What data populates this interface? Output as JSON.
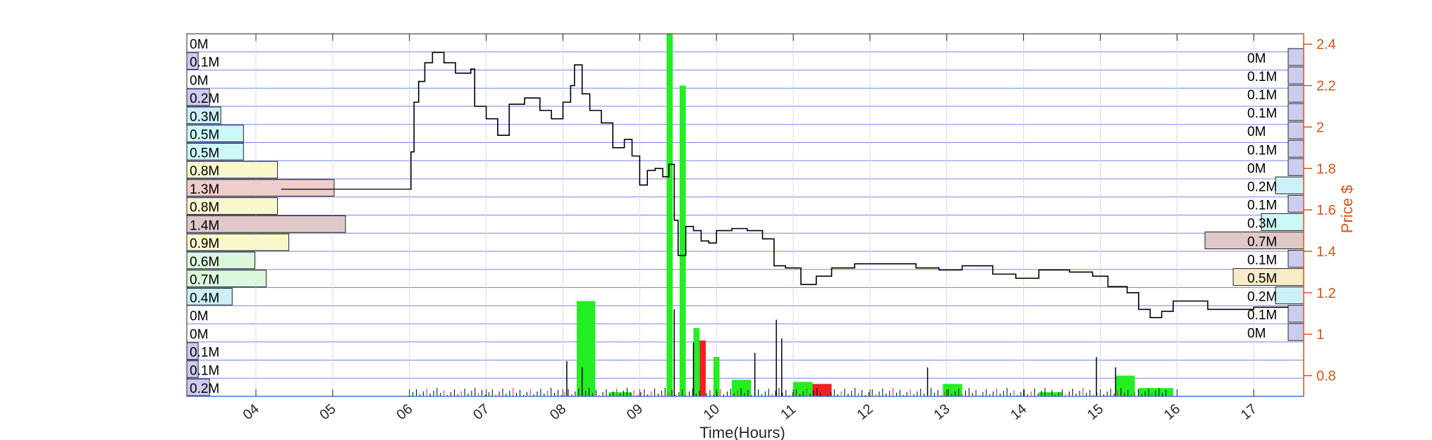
{
  "chart_data": {
    "type": "line",
    "title": "",
    "xlabel": "Time(Hours)",
    "ylabel_right": "Price $",
    "xlim": [
      3.1,
      17.65
    ],
    "x_ticks": [
      4,
      5,
      6,
      7,
      8,
      9,
      10,
      11,
      12,
      13,
      14,
      15,
      16,
      17
    ],
    "x_tick_labels": [
      "04",
      "05",
      "06",
      "07",
      "08",
      "09",
      "10",
      "11",
      "12",
      "13",
      "14",
      "15",
      "16",
      "17"
    ],
    "ylim_right": [
      0.7,
      2.45
    ],
    "y_ticks_right": [
      0.8,
      1.0,
      1.2,
      1.4,
      1.6,
      1.8,
      2.0,
      2.2,
      2.4
    ],
    "y_tick_labels_right": [
      "0.8",
      "1",
      "1.2",
      "1.4",
      "1.6",
      "1.8",
      "2",
      "2.2",
      "2.4"
    ],
    "grid": true,
    "colors": {
      "price_axis": "#D95319",
      "grid_rows": "#5b6ee8",
      "price_line": "#000000",
      "buy_volume": "#22ee22",
      "sell_volume": "#ee2222"
    },
    "price_series": {
      "name": "",
      "points": [
        [
          6.0,
          1.7
        ],
        [
          6.02,
          1.88
        ],
        [
          6.06,
          2.12
        ],
        [
          6.12,
          2.22
        ],
        [
          6.2,
          2.31
        ],
        [
          6.3,
          2.36
        ],
        [
          6.45,
          2.31
        ],
        [
          6.6,
          2.26
        ],
        [
          6.8,
          2.28
        ],
        [
          6.85,
          2.1
        ],
        [
          7.0,
          2.04
        ],
        [
          7.15,
          1.96
        ],
        [
          7.3,
          2.11
        ],
        [
          7.5,
          2.14
        ],
        [
          7.7,
          2.08
        ],
        [
          7.85,
          2.04
        ],
        [
          8.0,
          2.12
        ],
        [
          8.1,
          2.2
        ],
        [
          8.15,
          2.3
        ],
        [
          8.25,
          2.16
        ],
        [
          8.35,
          2.08
        ],
        [
          8.5,
          2.02
        ],
        [
          8.65,
          1.9
        ],
        [
          8.8,
          1.94
        ],
        [
          8.9,
          1.86
        ],
        [
          9.0,
          1.72
        ],
        [
          9.1,
          1.79
        ],
        [
          9.2,
          1.8
        ],
        [
          9.3,
          1.76
        ],
        [
          9.38,
          1.82
        ],
        [
          9.45,
          1.55
        ],
        [
          9.5,
          1.38
        ],
        [
          9.6,
          1.52
        ],
        [
          9.7,
          1.5
        ],
        [
          9.8,
          1.45
        ],
        [
          9.9,
          1.44
        ],
        [
          10.0,
          1.5
        ],
        [
          10.2,
          1.51
        ],
        [
          10.4,
          1.5
        ],
        [
          10.6,
          1.46
        ],
        [
          10.75,
          1.33
        ],
        [
          10.9,
          1.32
        ],
        [
          11.1,
          1.24
        ],
        [
          11.3,
          1.28
        ],
        [
          11.5,
          1.32
        ],
        [
          11.8,
          1.34
        ],
        [
          12.2,
          1.34
        ],
        [
          12.6,
          1.32
        ],
        [
          12.9,
          1.31
        ],
        [
          13.2,
          1.33
        ],
        [
          13.6,
          1.29
        ],
        [
          13.9,
          1.27
        ],
        [
          14.2,
          1.31
        ],
        [
          14.6,
          1.3
        ],
        [
          14.9,
          1.28
        ],
        [
          15.1,
          1.23
        ],
        [
          15.35,
          1.2
        ],
        [
          15.5,
          1.12
        ],
        [
          15.65,
          1.08
        ],
        [
          15.8,
          1.11
        ],
        [
          15.95,
          1.16
        ],
        [
          16.2,
          1.16
        ],
        [
          16.4,
          1.12
        ],
        [
          17.0,
          1.13
        ],
        [
          17.45,
          1.13
        ]
      ]
    },
    "volume_bars": [
      {
        "x0": 8.18,
        "x1": 8.42,
        "price_top": 1.16,
        "side": "buy"
      },
      {
        "x0": 9.35,
        "x1": 9.43,
        "price_top": 2.45,
        "side": "buy"
      },
      {
        "x0": 9.52,
        "x1": 9.6,
        "price_top": 2.2,
        "side": "buy"
      },
      {
        "x0": 9.7,
        "x1": 9.78,
        "price_top": 1.03,
        "side": "buy"
      },
      {
        "x0": 9.78,
        "x1": 9.86,
        "price_top": 0.97,
        "side": "sell"
      },
      {
        "x0": 9.96,
        "x1": 10.04,
        "price_top": 0.89,
        "side": "buy"
      },
      {
        "x0": 10.2,
        "x1": 10.45,
        "price_top": 0.78,
        "side": "buy"
      },
      {
        "x0": 11.0,
        "x1": 11.25,
        "price_top": 0.77,
        "side": "buy"
      },
      {
        "x0": 11.25,
        "x1": 11.5,
        "price_top": 0.76,
        "side": "sell"
      },
      {
        "x0": 12.95,
        "x1": 13.2,
        "price_top": 0.76,
        "side": "buy"
      },
      {
        "x0": 15.2,
        "x1": 15.45,
        "price_top": 0.8,
        "side": "buy"
      },
      {
        "x0": 15.5,
        "x1": 15.95,
        "price_top": 0.74,
        "side": "buy"
      },
      {
        "x0": 8.6,
        "x1": 8.9,
        "price_top": 0.72,
        "side": "buy"
      },
      {
        "x0": 14.2,
        "x1": 14.5,
        "price_top": 0.72,
        "side": "buy"
      }
    ],
    "volume_profile_left": {
      "labels": [
        "0M",
        "0.1M",
        "0M",
        "0.2M",
        "0.3M",
        "0.5M",
        "0.5M",
        "0.8M",
        "1.3M",
        "0.8M",
        "1.4M",
        "0.9M",
        "0.6M",
        "0.7M",
        "0.4M",
        "0M",
        "0M",
        "0.1M",
        "0.1M",
        "0.2M"
      ],
      "values": [
        0.0,
        0.1,
        0.0,
        0.2,
        0.3,
        0.5,
        0.5,
        0.8,
        1.3,
        0.8,
        1.4,
        0.9,
        0.6,
        0.7,
        0.4,
        0.0,
        0.0,
        0.1,
        0.1,
        0.2
      ],
      "colors": [
        "#ccccf0",
        "#ccccf0",
        "#ccccf0",
        "#ccccf0",
        "#ccf0f8",
        "#ccf8f8",
        "#ccf8f8",
        "#f8f8cc",
        "#f0cccc",
        "#f8f8cc",
        "#e0c8c8",
        "#f8f8cc",
        "#dcf8dc",
        "#dcf8dc",
        "#ccf0f8",
        "#ccccf0",
        "#ccccf0",
        "#ccccf0",
        "#ccccf0",
        "#ccccf0"
      ]
    },
    "volume_profile_right": {
      "labels": [
        "0M",
        "0.1M",
        "0.1M",
        "0.1M",
        "0M",
        "0.1M",
        "0M",
        "0.2M",
        "0.1M",
        "0.3M",
        "0.7M",
        "0.1M",
        "0.5M",
        "0.2M",
        "0.1M",
        "0M"
      ],
      "values": [
        0.0,
        0.1,
        0.1,
        0.1,
        0.0,
        0.1,
        0.0,
        0.2,
        0.1,
        0.3,
        0.7,
        0.1,
        0.5,
        0.2,
        0.1,
        0.0
      ],
      "colors": [
        "#ccccf0",
        "#ccccf0",
        "#ccccf0",
        "#ccccf0",
        "#ccccf0",
        "#ccccf0",
        "#ccccf0",
        "#ccf0f8",
        "#ccccf0",
        "#ccf8f8",
        "#e0c8c8",
        "#ccccf0",
        "#f8ecc8",
        "#ccf0f8",
        "#ccccf0",
        "#ccccf0"
      ]
    }
  }
}
